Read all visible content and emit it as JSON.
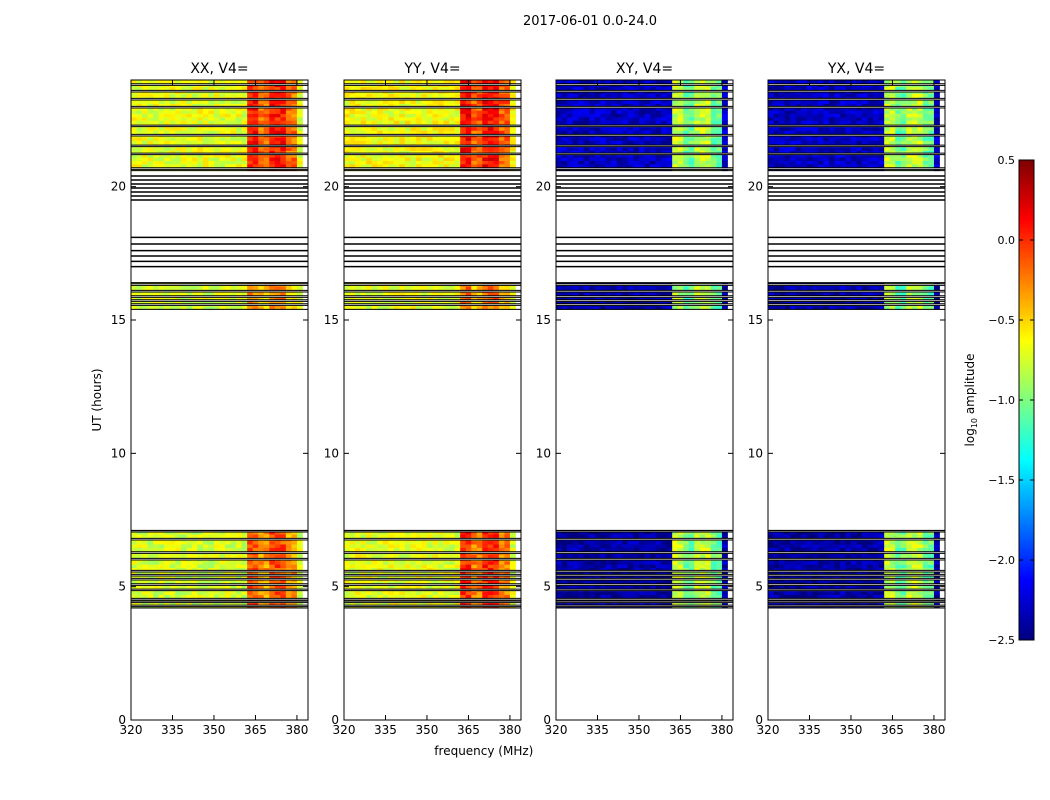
{
  "figure_title": "2017-06-01 0.0-24.0",
  "colormap": [
    "#00007f",
    "#0000ff",
    "#007fff",
    "#00ffff",
    "#7fff7f",
    "#ffff00",
    "#ff7f00",
    "#ff0000",
    "#7f0000"
  ],
  "chart_data": [
    {
      "type": "heatmap",
      "title": "XX, V4=",
      "xlabel": "",
      "ylabel": "UT (hours)",
      "xlim": [
        320,
        384
      ],
      "ylim": [
        0,
        24
      ],
      "xticks": [
        320,
        335,
        350,
        365,
        380
      ],
      "yticks": [
        0,
        5,
        10,
        15,
        20
      ],
      "rows": [
        {
          "t0": 4.2,
          "t1": 7.1,
          "base": -0.75,
          "strong": -0.1
        },
        {
          "t0": 15.4,
          "t1": 16.4,
          "base": -0.75,
          "strong": -0.25
        },
        {
          "t0": 20.6,
          "t1": 24.0,
          "base": -0.7,
          "strong": 0.05
        }
      ],
      "strong_freq_range": [
        362,
        380
      ],
      "gaps": [
        4.25,
        4.4,
        4.5,
        4.85,
        5.05,
        5.25,
        5.4,
        5.55,
        6.0,
        6.25,
        6.75,
        7.05,
        15.55,
        15.7,
        15.85,
        16.05,
        16.3,
        20.65,
        21.2,
        21.5,
        21.9,
        22.25,
        22.95,
        23.25,
        23.55,
        23.8
      ]
    },
    {
      "type": "heatmap",
      "title": "YY, V4=",
      "xlabel": "frequency (MHz)",
      "ylabel": "",
      "xlim": [
        320,
        384
      ],
      "ylim": [
        0,
        24
      ],
      "xticks": [
        320,
        335,
        350,
        365,
        380
      ],
      "yticks": [
        0,
        5,
        10,
        15,
        20
      ],
      "rows": [
        {
          "t0": 4.2,
          "t1": 7.1,
          "base": -0.7,
          "strong": 0.0
        },
        {
          "t0": 15.4,
          "t1": 16.4,
          "base": -0.7,
          "strong": -0.2
        },
        {
          "t0": 20.6,
          "t1": 24.0,
          "base": -0.65,
          "strong": 0.1
        }
      ],
      "strong_freq_range": [
        362,
        380
      ],
      "gaps": [
        4.25,
        4.4,
        4.5,
        4.85,
        5.05,
        5.25,
        5.4,
        5.55,
        6.0,
        6.25,
        6.75,
        7.05,
        15.55,
        15.7,
        15.85,
        16.05,
        16.3,
        20.65,
        21.2,
        21.5,
        21.9,
        22.25,
        22.95,
        23.25,
        23.55,
        23.8
      ]
    },
    {
      "type": "heatmap",
      "title": "XY, V4=",
      "xlabel": "",
      "ylabel": "",
      "xlim": [
        320,
        384
      ],
      "ylim": [
        0,
        24
      ],
      "xticks": [
        320,
        335,
        350,
        365,
        380
      ],
      "yticks": [
        0,
        5,
        10,
        15,
        20
      ],
      "rows": [
        {
          "t0": 4.2,
          "t1": 7.1,
          "base": -2.4,
          "strong": -0.8
        },
        {
          "t0": 15.4,
          "t1": 16.4,
          "base": -2.35,
          "strong": -0.85
        },
        {
          "t0": 20.6,
          "t1": 24.0,
          "base": -2.3,
          "strong": -0.8
        }
      ],
      "strong_freq_range": [
        362,
        380
      ],
      "gaps": [
        4.25,
        4.4,
        4.5,
        4.85,
        5.05,
        5.25,
        5.4,
        5.55,
        6.0,
        6.25,
        6.75,
        7.05,
        15.55,
        15.7,
        15.85,
        16.05,
        16.3,
        20.65,
        21.2,
        21.5,
        21.9,
        22.25,
        22.95,
        23.25,
        23.55,
        23.8
      ]
    },
    {
      "type": "heatmap",
      "title": "YX, V4=",
      "xlabel": "",
      "ylabel": "",
      "xlim": [
        320,
        384
      ],
      "ylim": [
        0,
        24
      ],
      "xticks": [
        320,
        335,
        350,
        365,
        380
      ],
      "yticks": [
        0,
        5,
        10,
        15,
        20
      ],
      "rows": [
        {
          "t0": 4.2,
          "t1": 7.1,
          "base": -2.4,
          "strong": -0.8
        },
        {
          "t0": 15.4,
          "t1": 16.4,
          "base": -2.35,
          "strong": -0.85
        },
        {
          "t0": 20.6,
          "t1": 24.0,
          "base": -2.3,
          "strong": -0.8
        }
      ],
      "strong_freq_range": [
        362,
        380
      ],
      "gaps": [
        4.25,
        4.4,
        4.5,
        4.85,
        5.05,
        5.25,
        5.4,
        5.55,
        6.0,
        6.25,
        6.75,
        7.05,
        15.55,
        15.7,
        15.85,
        16.05,
        16.3,
        20.65,
        21.2,
        21.5,
        21.9,
        22.25,
        22.95,
        23.25,
        23.55,
        23.8
      ]
    }
  ],
  "blank_bands": [
    17.0,
    17.2,
    17.4,
    17.6,
    17.85,
    18.1,
    19.5,
    19.65,
    19.8,
    19.95,
    20.1,
    20.25,
    20.4
  ],
  "colorbar": {
    "label": "log",
    "label_sub": "10",
    "label_rest": " amplitude",
    "min": -2.5,
    "max": 0.5,
    "ticks": [
      0.5,
      0.0,
      -0.5,
      -1.0,
      -1.5,
      -2.0,
      -2.5
    ],
    "tick_labels": [
      "0.5",
      "0.0",
      "−0.5",
      "−1.0",
      "−1.5",
      "−2.0",
      "−2.5"
    ]
  }
}
